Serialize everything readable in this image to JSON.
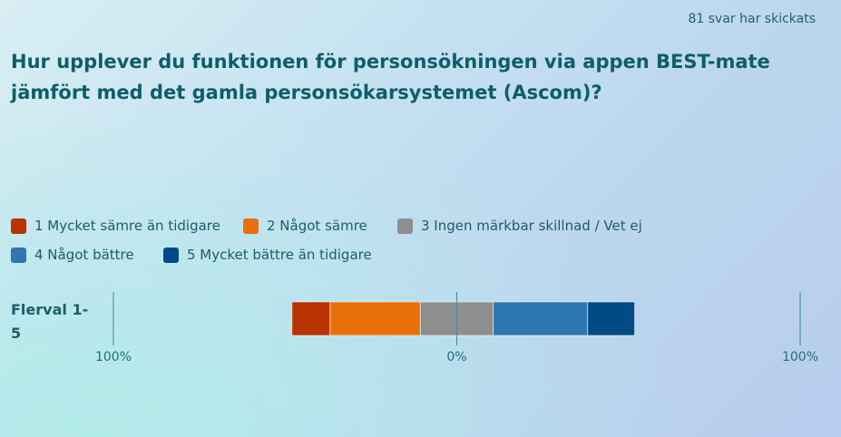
{
  "header": {
    "responses": "81 svar har skickats",
    "question": "Hur upplever du funktionen för personsökningen via appen BEST-mate jämfört med det gamla personsökarsystemet (Ascom)?"
  },
  "legend": [
    {
      "label": "1 Mycket sämre än tidigare",
      "color": "#b83300"
    },
    {
      "label": "2 Något sämre",
      "color": "#e8700a"
    },
    {
      "label": "3 Ingen märkbar skillnad / Vet ej",
      "color": "#8e8e8e"
    },
    {
      "label": "4 Något bättre",
      "color": "#2e77b0"
    },
    {
      "label": "5 Mycket bättre än tidigare",
      "color": "#004a85"
    }
  ],
  "chart_data": {
    "type": "bar",
    "orientation": "horizontal",
    "stacked": "diverging",
    "categories": [
      "Flervat 1-5"
    ],
    "series": [
      {
        "name": "1 Mycket sämre än tidigare",
        "values": [
          -11.1
        ],
        "color": "#b83300"
      },
      {
        "name": "2 Något sämre",
        "values": [
          -26.3
        ],
        "color": "#e8700a"
      },
      {
        "name": "3 Ingen märkbar skillnad / Vet ej",
        "values": [
          21.2
        ],
        "color": "#8e8e8e"
      },
      {
        "name": "4 Något bättre",
        "values": [
          27.5
        ],
        "color": "#2e77b0"
      },
      {
        "name": "5 Mycket bättre än tidigare",
        "values": [
          13.7
        ],
        "color": "#004a85"
      }
    ],
    "xlim": [
      -100,
      100
    ],
    "tick_values": [
      -100,
      0,
      100
    ],
    "tick_labels": [
      "100%",
      "0%",
      "100%"
    ],
    "neutral_series": "3 Ingen märkbar skillnad / Vet ej",
    "legend_position": "top",
    "grid": false,
    "row_label": "Flerval 1-\n5"
  }
}
